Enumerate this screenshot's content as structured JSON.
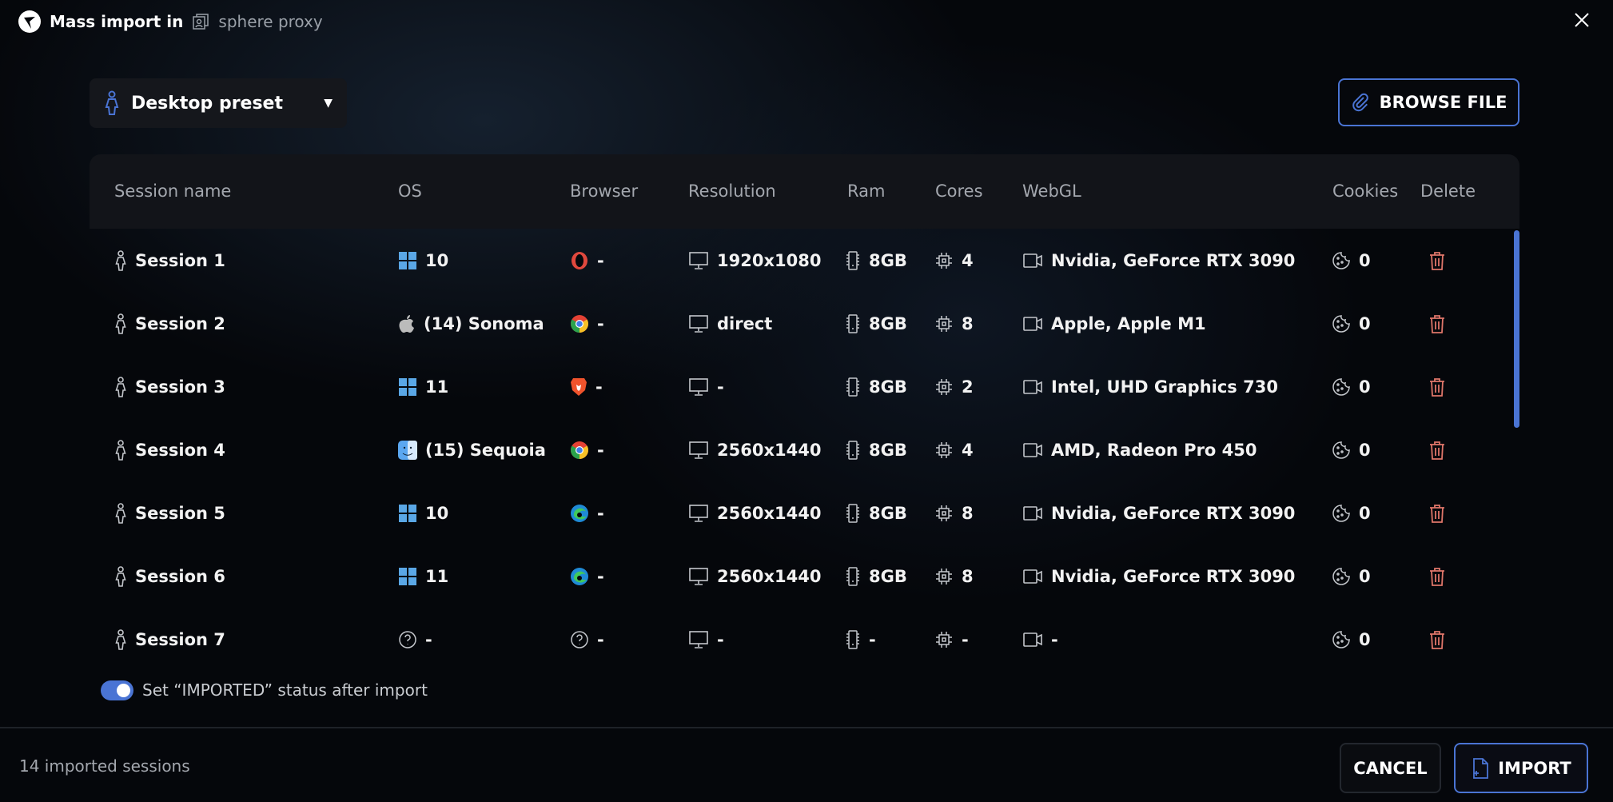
{
  "header": {
    "title": "Mass import in",
    "workspace": "sphere proxy"
  },
  "preset": {
    "label": "Desktop preset"
  },
  "browse_label": "BROWSE FILE",
  "columns": [
    "Session name",
    "OS",
    "Browser",
    "Resolution",
    "Ram",
    "Cores",
    "WebGL",
    "Cookies",
    "Delete"
  ],
  "rows": [
    {
      "name": "Session 1",
      "os_icon": "windows",
      "os": "10",
      "browser_icon": "opera",
      "browser": "-",
      "resolution": "1920x1080",
      "ram": "8GB",
      "cores": "4",
      "webgl": "Nvidia, GeForce RTX 3090",
      "cookies": "0"
    },
    {
      "name": "Session 2",
      "os_icon": "apple",
      "os": "(14) Sonoma",
      "browser_icon": "chrome",
      "browser": "-",
      "resolution": "direct",
      "ram": "8GB",
      "cores": "8",
      "webgl": "Apple, Apple M1",
      "cookies": "0"
    },
    {
      "name": "Session 3",
      "os_icon": "windows",
      "os": "11",
      "browser_icon": "brave",
      "browser": "-",
      "resolution": "-",
      "ram": "8GB",
      "cores": "2",
      "webgl": "Intel, UHD Graphics 730",
      "cookies": "0"
    },
    {
      "name": "Session 4",
      "os_icon": "macos-finder",
      "os": "(15) Sequoia",
      "browser_icon": "chrome",
      "browser": "-",
      "resolution": "2560x1440",
      "ram": "8GB",
      "cores": "4",
      "webgl": "AMD, Radeon Pro 450",
      "cookies": "0"
    },
    {
      "name": "Session 5",
      "os_icon": "windows",
      "os": "10",
      "browser_icon": "edge",
      "browser": "-",
      "resolution": "2560x1440",
      "ram": "8GB",
      "cores": "8",
      "webgl": "Nvidia, GeForce RTX 3090",
      "cookies": "0"
    },
    {
      "name": "Session 6",
      "os_icon": "windows",
      "os": "11",
      "browser_icon": "edge",
      "browser": "-",
      "resolution": "2560x1440",
      "ram": "8GB",
      "cores": "8",
      "webgl": "Nvidia, GeForce RTX 3090",
      "cookies": "0"
    },
    {
      "name": "Session 7",
      "os_icon": "unknown",
      "os": "-",
      "browser_icon": "unknown",
      "browser": "-",
      "resolution": "-",
      "ram": "-",
      "cores": "-",
      "webgl": "-",
      "cookies": "0"
    }
  ],
  "toggle": {
    "label": "Set “IMPORTED” status after import",
    "on": true
  },
  "footer": {
    "count_text": "14 imported sessions",
    "cancel": "CANCEL",
    "import": "IMPORT"
  },
  "colors": {
    "accent": "#4a74d4",
    "delete": "#e0766a"
  }
}
